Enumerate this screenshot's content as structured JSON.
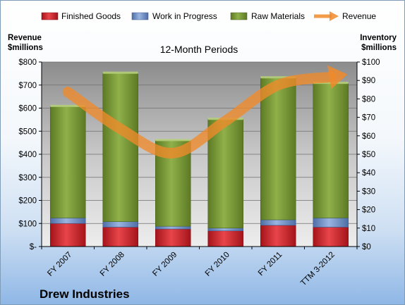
{
  "chart_data": {
    "type": "bar",
    "stacked": true,
    "title": "12-Month Periods",
    "company": "Drew Industries",
    "categories": [
      "FY 2007",
      "FY 2008",
      "FY 2009",
      "FY 2010",
      "FY 2011",
      "TTM 3-2012"
    ],
    "y_left": {
      "label_line1": "Revenue",
      "label_line2": "$millions",
      "lim": [
        0,
        800
      ],
      "ticks": [
        0,
        100,
        200,
        300,
        400,
        500,
        600,
        700,
        800
      ],
      "tick_labels": [
        "$-",
        "$100",
        "$200",
        "$300",
        "$400",
        "$500",
        "$600",
        "$700",
        "$800"
      ]
    },
    "y_right": {
      "label_line1": "Inventory",
      "label_line2": "$millions",
      "lim": [
        0,
        100
      ],
      "ticks": [
        0,
        10,
        20,
        30,
        40,
        50,
        60,
        70,
        80,
        90,
        100
      ],
      "tick_labels": [
        "$0",
        "$10",
        "$20",
        "$30",
        "$40",
        "$50",
        "$60",
        "$70",
        "$80",
        "$90",
        "$100"
      ]
    },
    "series": [
      {
        "name": "Finished Goods",
        "axis": "right",
        "color": "#d9262c",
        "values": [
          12.5,
          10.5,
          9.5,
          8.5,
          11.5,
          10.5
        ]
      },
      {
        "name": "Work in Progress",
        "axis": "right",
        "color": "#6e8fc7",
        "values": [
          3,
          3,
          1.5,
          1.5,
          3,
          5
        ]
      },
      {
        "name": "Raw Materials",
        "axis": "right",
        "color": "#7a9a3a",
        "values": [
          60.5,
          80.5,
          46.5,
          59,
          77,
          73
        ]
      },
      {
        "name": "Revenue",
        "axis": "left",
        "type": "line",
        "color": "#f08a2a",
        "values": [
          670,
          510,
          405,
          545,
          700,
          735
        ]
      }
    ],
    "legend_position": "top",
    "grid": true
  }
}
